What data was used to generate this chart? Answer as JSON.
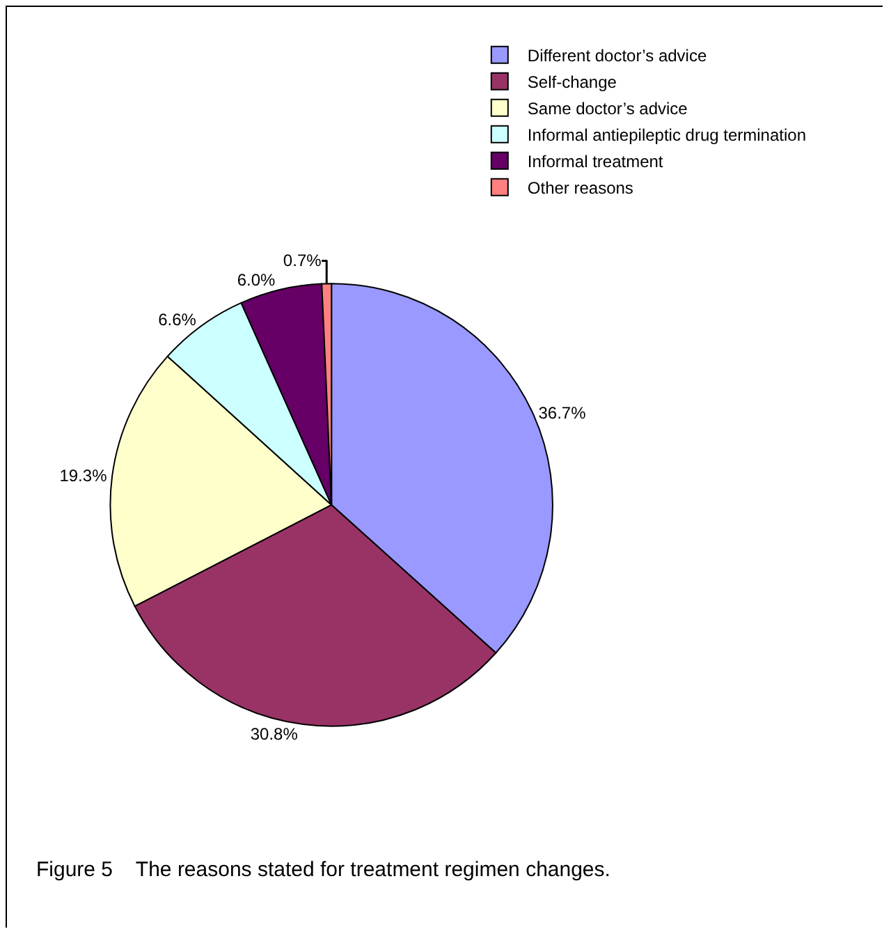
{
  "chart_data": {
    "type": "pie",
    "annotations": [
      "Figure 5    The reasons stated for treatment regimen changes."
    ],
    "categories": [
      "Different doctor’s advice",
      "Self-change",
      "Same doctor’s advice",
      "Informal antiepileptic drug termination",
      "Informal treatment",
      "Other reasons"
    ],
    "values": [
      36.7,
      30.8,
      19.3,
      6.6,
      6.0,
      0.7
    ],
    "value_labels": [
      "36.7%",
      "30.8%",
      "19.3%",
      "6.6%",
      "6.0%",
      "0.7%"
    ],
    "colors": [
      "#9999ff",
      "#993366",
      "#ffffcc",
      "#ccffff",
      "#660066",
      "#ff8080"
    ],
    "legend": "top right"
  }
}
